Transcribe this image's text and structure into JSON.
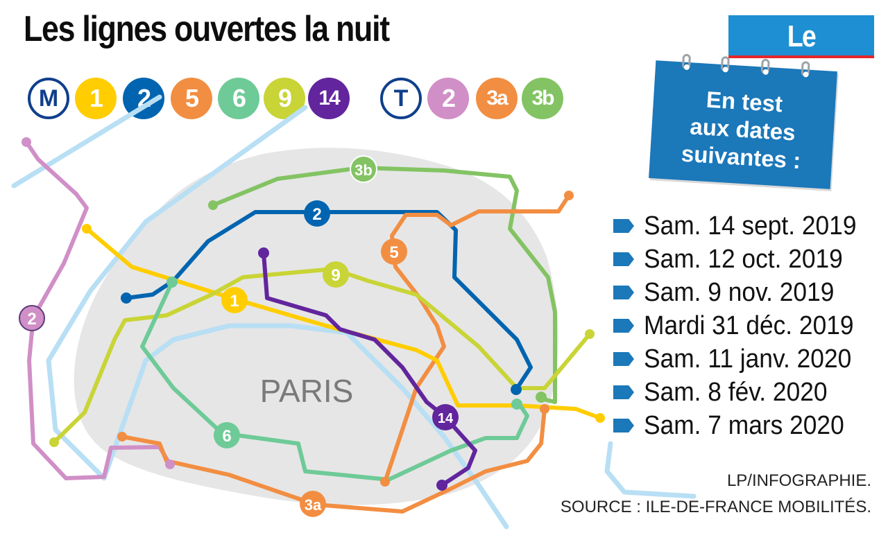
{
  "title": "Les lignes ouvertes la nuit",
  "publisher": "Le Parisien",
  "legend": {
    "metro_symbol": "M",
    "metro_lines": [
      {
        "label": "1",
        "color": "#ffcd00"
      },
      {
        "label": "2",
        "color": "#0064b0"
      },
      {
        "label": "5",
        "color": "#f28e42"
      },
      {
        "label": "6",
        "color": "#6eca97"
      },
      {
        "label": "9",
        "color": "#c9d436"
      },
      {
        "label": "14",
        "color": "#62259d"
      }
    ],
    "tram_symbol": "T",
    "tram_lines": [
      {
        "label": "2",
        "color": "#d08fc7"
      },
      {
        "label": "3a",
        "color": "#f28e42"
      },
      {
        "label": "3b",
        "color": "#83c363"
      }
    ]
  },
  "map": {
    "city_label": "PARIS",
    "line_labels": [
      "3b",
      "2",
      "5",
      "9",
      "1",
      "2",
      "14",
      "6",
      "3a"
    ],
    "colors": {
      "seine": "#b8dff4",
      "paris_area": "#e6e6e6",
      "line_1": "#ffcd00",
      "line_2": "#0064b0",
      "line_5": "#f28e42",
      "line_6": "#6eca97",
      "line_9": "#c9d436",
      "line_14": "#62259d",
      "tram_2": "#d08fc7",
      "tram_3a": "#f28e42",
      "tram_3b": "#83c363"
    }
  },
  "note": {
    "lines": [
      "En test",
      "aux dates",
      "suivantes :"
    ],
    "color": "#1b78b9"
  },
  "dates": [
    "Sam. 14 sept. 2019",
    "Sam. 12 oct. 2019",
    "Sam. 9 nov. 2019",
    "Mardi 31 déc. 2019",
    "Sam. 11 janv. 2020",
    "Sam. 8 fév. 2020",
    "Sam. 7 mars 2020"
  ],
  "credits": {
    "line1": "LP/INFOGRAPHIE.",
    "line2": "SOURCE : ILE-DE-FRANCE MOBILITÉS."
  }
}
